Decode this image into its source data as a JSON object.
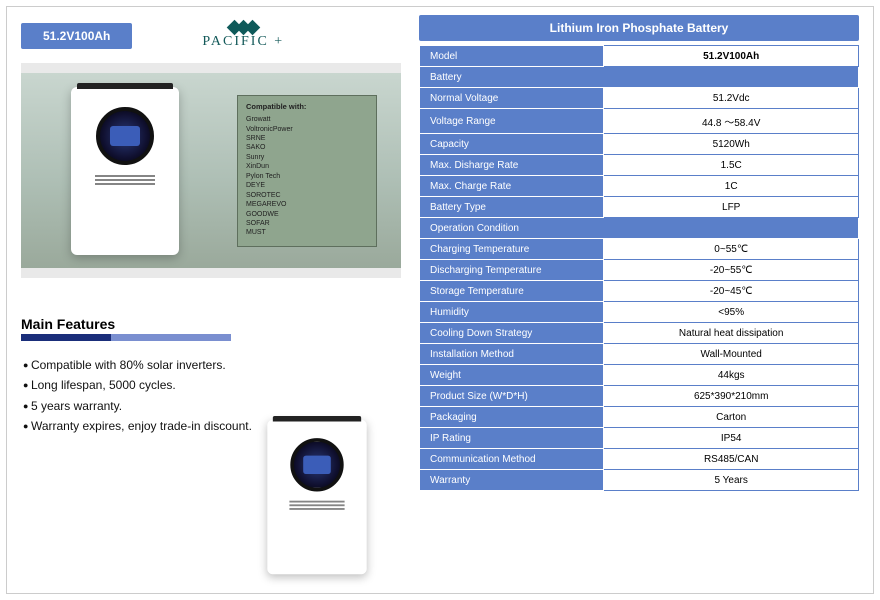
{
  "colors": {
    "accent": "#5a7fc9",
    "brand": "#145a5a",
    "underline_dark": "#1a2e7a",
    "underline_light": "#7a8fd0",
    "panel_bg": "#e9e9e9"
  },
  "model_badge": "51.2V100Ah",
  "brand_name": "PACIFIC +",
  "right_title": "Lithium Iron Phosphate Battery",
  "main_features_title": "Main Features",
  "features": [
    "Compatible with 80% solar inverters.",
    "Long lifespan, 5000 cycles.",
    "5 years warranty.",
    "Warranty expires, enjoy trade-in discount."
  ],
  "compat_title": "Compatible with:",
  "compat_list": [
    "Growatt",
    "VoltronicPower",
    "SRNE",
    "SAKO",
    "Sunry",
    "XinDun",
    "Pylon Tech",
    "DEYE",
    "SOROTEC",
    "MEGAREVO",
    "GOODWE",
    "SOFAR",
    "MUST"
  ],
  "spec": {
    "header": {
      "label": "Model",
      "value": "51.2V100Ah"
    },
    "sections": [
      {
        "title": "Battery",
        "rows": [
          {
            "label": "Normal Voltage",
            "value": "51.2Vdc"
          },
          {
            "label": "Voltage Range",
            "value": "44.8 ～58.4V"
          },
          {
            "label": "Capacity",
            "value": "5120Wh"
          },
          {
            "label": "Max. Disharge Rate",
            "value": "1.5C"
          },
          {
            "label": "Max. Charge Rate",
            "value": "1C"
          },
          {
            "label": "Battery Type",
            "value": "LFP"
          }
        ]
      },
      {
        "title": "Operation Condition",
        "rows": [
          {
            "label": "Charging Temperature",
            "value": "0~55℃"
          },
          {
            "label": "Discharging Temperature",
            "value": "-20~55℃"
          },
          {
            "label": "Storage Temperature",
            "value": "-20~45℃"
          },
          {
            "label": "Humidity",
            "value": "<95%"
          },
          {
            "label": "Cooling Down Strategy",
            "value": "Natural heat dissipation"
          },
          {
            "label": "Installation Method",
            "value": "Wall-Mounted"
          },
          {
            "label": "Weight",
            "value": "44kgs"
          },
          {
            "label": "Product Size (W*D*H)",
            "value": "625*390*210mm"
          },
          {
            "label": "Packaging",
            "value": "Carton"
          },
          {
            "label": "IP Rating",
            "value": "IP54"
          },
          {
            "label": "Communication Method",
            "value": "RS485/CAN"
          },
          {
            "label": "Warranty",
            "value": "5 Years"
          }
        ]
      }
    ]
  }
}
